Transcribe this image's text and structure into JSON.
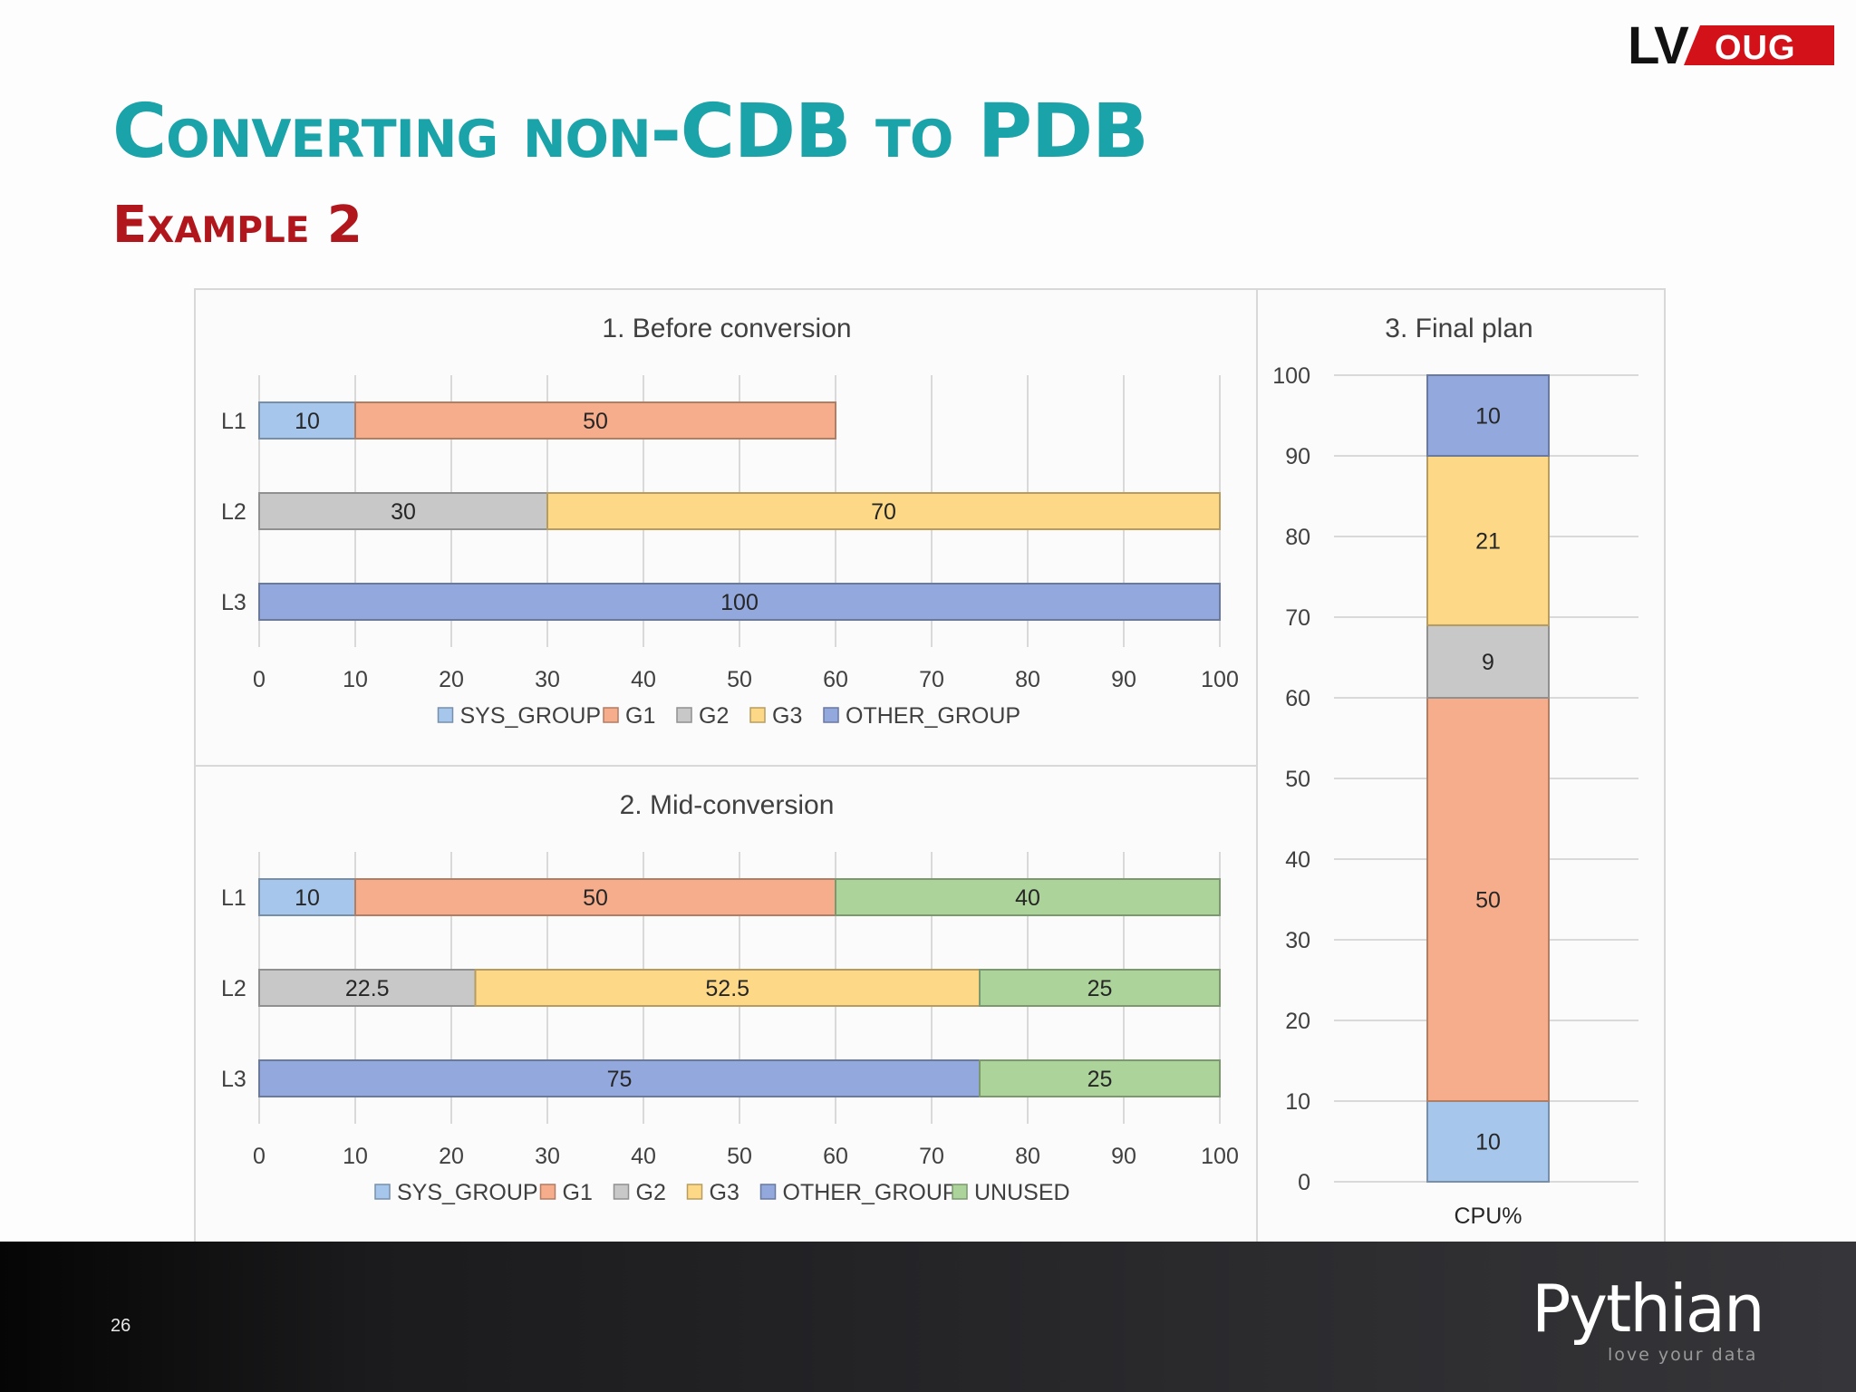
{
  "slide": {
    "title": "Converting non-CDB to PDB",
    "subtitle": "Example 2",
    "page_number": "26",
    "logo_text": "LVOUG",
    "brand_name": "Pythian",
    "brand_tagline": "love your data"
  },
  "colors": {
    "title": "#1aa3a8",
    "subtitle": "#b0161c",
    "SYS_GROUP": "#a6c6ec",
    "G1": "#f5ad8c",
    "G2": "#c8c8c8",
    "G3": "#fdd987",
    "OTHER_GROUP": "#93a8dc",
    "UNUSED": "#acd39a"
  },
  "chart_data": [
    {
      "type": "bar",
      "orientation": "horizontal",
      "stacked": true,
      "title": "1. Before conversion",
      "categories": [
        "L1",
        "L2",
        "L3"
      ],
      "series": [
        {
          "name": "SYS_GROUP",
          "values": [
            10,
            0,
            0
          ]
        },
        {
          "name": "G1",
          "values": [
            50,
            0,
            0
          ]
        },
        {
          "name": "G2",
          "values": [
            0,
            30,
            0
          ]
        },
        {
          "name": "G3",
          "values": [
            0,
            70,
            0
          ]
        },
        {
          "name": "OTHER_GROUP",
          "values": [
            0,
            0,
            100
          ]
        }
      ],
      "xlim": [
        0,
        100
      ],
      "xticks": [
        "0",
        "10",
        "20",
        "30",
        "40",
        "50",
        "60",
        "70",
        "80",
        "90",
        "100"
      ],
      "grid": true,
      "legend_position": "bottom"
    },
    {
      "type": "bar",
      "orientation": "horizontal",
      "stacked": true,
      "title": "2. Mid-conversion",
      "categories": [
        "L1",
        "L2",
        "L3"
      ],
      "series": [
        {
          "name": "SYS_GROUP",
          "values": [
            10,
            0,
            0
          ]
        },
        {
          "name": "G1",
          "values": [
            50,
            0,
            0
          ]
        },
        {
          "name": "G2",
          "values": [
            0,
            22.5,
            0
          ]
        },
        {
          "name": "G3",
          "values": [
            0,
            52.5,
            0
          ]
        },
        {
          "name": "OTHER_GROUP",
          "values": [
            0,
            0,
            75
          ]
        },
        {
          "name": "UNUSED",
          "values": [
            40,
            25,
            25
          ]
        }
      ],
      "xlim": [
        0,
        100
      ],
      "xticks": [
        "0",
        "10",
        "20",
        "30",
        "40",
        "50",
        "60",
        "70",
        "80",
        "90",
        "100"
      ],
      "grid": true,
      "legend_position": "bottom"
    },
    {
      "type": "bar",
      "orientation": "vertical",
      "stacked": true,
      "title": "3. Final plan",
      "categories": [
        "CPU%"
      ],
      "series": [
        {
          "name": "SYS_GROUP",
          "values": [
            10
          ]
        },
        {
          "name": "G1",
          "values": [
            50
          ]
        },
        {
          "name": "G2",
          "values": [
            9
          ]
        },
        {
          "name": "G3",
          "values": [
            21
          ]
        },
        {
          "name": "OTHER_GROUP",
          "values": [
            10
          ]
        }
      ],
      "ylim": [
        0,
        100
      ],
      "yticks": [
        "0",
        "10",
        "20",
        "30",
        "40",
        "50",
        "60",
        "70",
        "80",
        "90",
        "100"
      ],
      "grid": true,
      "legend_position": "none"
    }
  ]
}
